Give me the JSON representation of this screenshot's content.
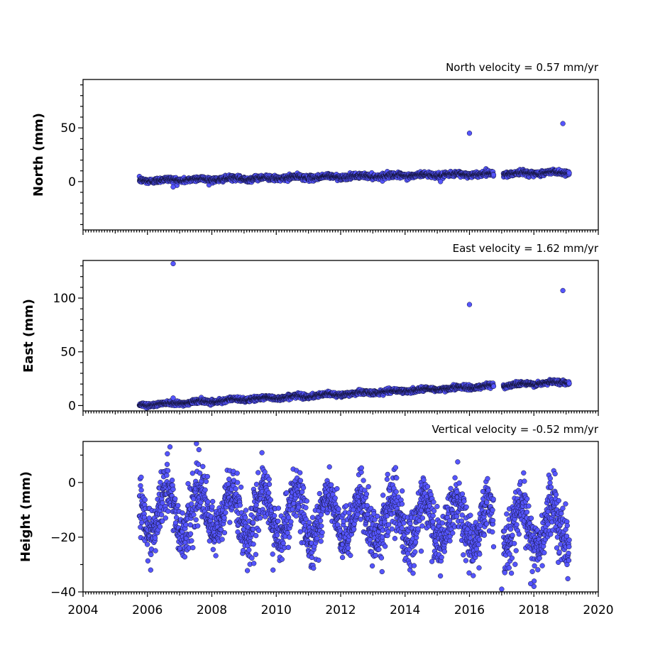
{
  "colors": {
    "marker_fill": "#5555ff",
    "marker_edge": "#111133"
  },
  "chart_data": [
    {
      "type": "scatter",
      "title": "North velocity = 0.57 mm/yr",
      "ylabel": "North (mm)",
      "xlim": [
        2004,
        2020
      ],
      "ylim": [
        -45,
        95
      ],
      "yticks": [
        0,
        50
      ],
      "xticks": [],
      "grid": false,
      "trend": {
        "slope": 0.57,
        "start": 1.0,
        "seasonal_amp": 0.8,
        "noise": 1.2
      },
      "gaps": [
        [
          2016.75,
          2017.05
        ]
      ],
      "x_range": [
        2005.75,
        2019.1
      ],
      "outliers": [
        [
          2016.0,
          45
        ],
        [
          2018.9,
          54
        ],
        [
          2006.8,
          -5
        ],
        [
          2015.1,
          0
        ]
      ]
    },
    {
      "type": "scatter",
      "title": "East velocity = 1.62 mm/yr",
      "ylabel": "East (mm)",
      "xlim": [
        2004,
        2020
      ],
      "ylim": [
        -5,
        135
      ],
      "yticks": [
        0,
        50,
        100
      ],
      "xticks": [],
      "grid": false,
      "trend": {
        "slope": 1.62,
        "start": 0.5,
        "seasonal_amp": 0.8,
        "noise": 1.0
      },
      "gaps": [
        [
          2016.75,
          2017.05
        ]
      ],
      "x_range": [
        2005.75,
        2019.1
      ],
      "outliers": [
        [
          2006.8,
          132
        ],
        [
          2016.0,
          94
        ],
        [
          2018.9,
          107
        ],
        [
          2006.8,
          7
        ]
      ]
    },
    {
      "type": "scatter",
      "title": "Vertical velocity = -0.52 mm/yr",
      "ylabel": "Height (mm)",
      "xlim": [
        2004,
        2020
      ],
      "ylim": [
        -40,
        15
      ],
      "yticks": [
        -40,
        -20,
        0
      ],
      "xticks": [
        "2004",
        "2006",
        "2008",
        "2010",
        "2012",
        "2014",
        "2016",
        "2018",
        "2020"
      ],
      "grid": false,
      "trend": {
        "slope": -0.52,
        "start": -10.0,
        "seasonal_amp": 8.0,
        "noise": 5.0
      },
      "gaps": [
        [
          2016.75,
          2017.05
        ]
      ],
      "x_range": [
        2005.75,
        2019.1
      ],
      "outliers": [
        [
          2006.7,
          13
        ],
        [
          2007.6,
          12
        ],
        [
          2006.1,
          -32
        ],
        [
          2009.9,
          -32
        ],
        [
          2017.0,
          -39
        ],
        [
          2018.0,
          -38
        ],
        [
          2017.9,
          -37
        ]
      ]
    }
  ]
}
